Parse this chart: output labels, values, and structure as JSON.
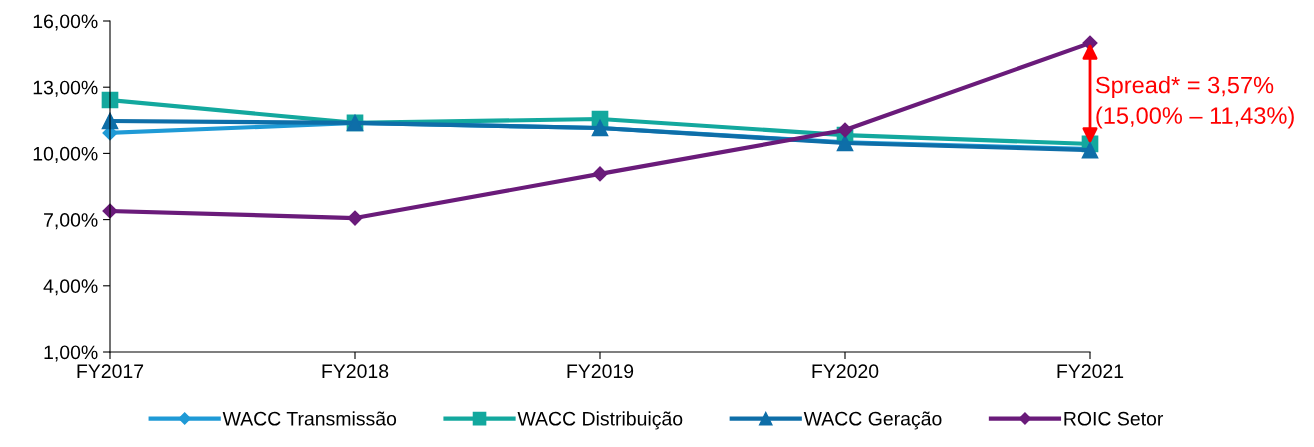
{
  "chart_data": {
    "type": "line",
    "categories": [
      "FY2017",
      "FY2018",
      "FY2019",
      "FY2020",
      "FY2021"
    ],
    "series": [
      {
        "name": "WACC Transmissão",
        "color": "#1f9ad6",
        "marker": "diamond",
        "values": [
          10.93,
          11.38,
          11.15,
          10.5,
          10.2
        ]
      },
      {
        "name": "WACC Distribuição",
        "color": "#13a89e",
        "marker": "square",
        "values": [
          12.42,
          11.38,
          11.56,
          10.83,
          10.43
        ]
      },
      {
        "name": "WACC Geração",
        "color": "#0e6ea8",
        "marker": "triangle",
        "values": [
          11.47,
          11.38,
          11.15,
          10.47,
          10.15
        ]
      },
      {
        "name": "ROIC Setor",
        "color": "#6a1b7a",
        "marker": "diamond",
        "values": [
          7.39,
          7.07,
          9.07,
          11.06,
          15.0
        ]
      }
    ],
    "ylim": [
      1,
      16
    ],
    "yticks": [
      {
        "value": 1,
        "label": "1,00%"
      },
      {
        "value": 4,
        "label": "4,00%"
      },
      {
        "value": 7,
        "label": "7,00%"
      },
      {
        "value": 10,
        "label": "10,00%"
      },
      {
        "value": 13,
        "label": "13,00%"
      },
      {
        "value": 16,
        "label": "16,00%"
      }
    ],
    "grid": false,
    "legend": "bottom",
    "line_style": "solid",
    "annotations": [
      {
        "text": "Spread* = 3,57%\n(15,00% – 11,43%)",
        "x": "FY2021",
        "y": 15.0
      }
    ]
  }
}
